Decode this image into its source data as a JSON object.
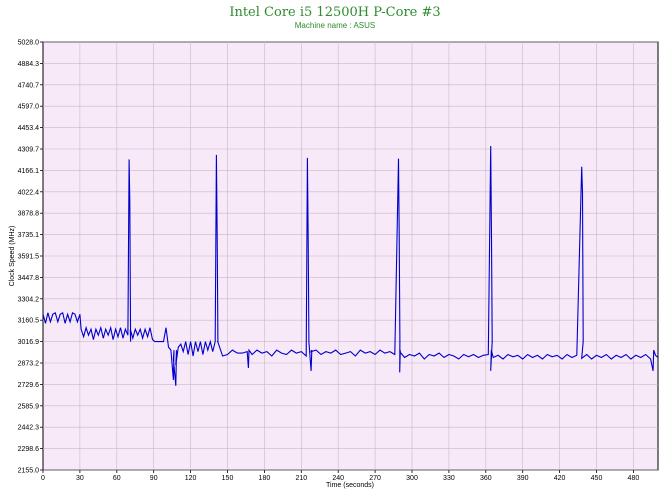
{
  "chart_data": {
    "type": "line",
    "title": "Intel Core i5 12500H P-Core #3",
    "subtitle": "Machine name : ASUS",
    "xlabel": "Time (seconds)",
    "ylabel": "Clock Speed (MHz)",
    "xlim": [
      0,
      500
    ],
    "ylim": [
      2155.0,
      5028.0
    ],
    "x_ticks": [
      0,
      30,
      60,
      90,
      120,
      150,
      180,
      210,
      240,
      270,
      300,
      330,
      360,
      390,
      420,
      450,
      480
    ],
    "y_ticks": [
      "2155.0",
      "2298.6",
      "2442.3",
      "2585.9",
      "2729.6",
      "2873.2",
      "3016.9",
      "3160.5",
      "3304.2",
      "3447.8",
      "3591.5",
      "3735.1",
      "3878.8",
      "4022.4",
      "4166.1",
      "4309.7",
      "4453.4",
      "4597.0",
      "4740.7",
      "4884.3",
      "5028.0"
    ],
    "grid": true,
    "colors": {
      "plot_bg": "#f7e9f7",
      "grid": "#c8b8c8",
      "line": "#0000cc",
      "title": "#2e8b2e"
    },
    "series": [
      {
        "baseline": [
          [
            0,
            3200
          ],
          [
            2,
            3140
          ],
          [
            4,
            3210
          ],
          [
            6,
            3150
          ],
          [
            8,
            3200
          ],
          [
            10,
            3210
          ],
          [
            12,
            3150
          ],
          [
            14,
            3200
          ],
          [
            16,
            3210
          ],
          [
            18,
            3140
          ],
          [
            20,
            3200
          ],
          [
            22,
            3150
          ],
          [
            24,
            3210
          ],
          [
            26,
            3200
          ],
          [
            28,
            3150
          ],
          [
            30,
            3200
          ],
          [
            31,
            3100
          ],
          [
            33,
            3050
          ],
          [
            35,
            3110
          ],
          [
            37,
            3060
          ],
          [
            39,
            3100
          ],
          [
            41,
            3030
          ],
          [
            43,
            3100
          ],
          [
            45,
            3060
          ],
          [
            47,
            3110
          ],
          [
            49,
            3040
          ],
          [
            51,
            3100
          ],
          [
            53,
            3060
          ],
          [
            55,
            3110
          ],
          [
            57,
            3030
          ],
          [
            59,
            3100
          ],
          [
            61,
            3050
          ],
          [
            63,
            3110
          ],
          [
            65,
            3040
          ],
          [
            67,
            3100
          ],
          [
            69,
            3060
          ],
          [
            71,
            3100
          ],
          [
            73,
            3040
          ],
          [
            75,
            3100
          ],
          [
            77,
            3060
          ],
          [
            79,
            3100
          ],
          [
            81,
            3040
          ],
          [
            83,
            3100
          ],
          [
            85,
            3050
          ],
          [
            87,
            3110
          ],
          [
            89,
            3030
          ],
          [
            91,
            3017
          ],
          [
            95,
            3017
          ],
          [
            98,
            3017
          ],
          [
            100,
            3110
          ],
          [
            102,
            2980
          ],
          [
            104,
            2960
          ],
          [
            106,
            2900
          ],
          [
            108,
            2860
          ],
          [
            110,
            2980
          ],
          [
            112,
            3000
          ],
          [
            114,
            2950
          ],
          [
            116,
            3017
          ],
          [
            118,
            2930
          ],
          [
            120,
            3017
          ],
          [
            122,
            2920
          ],
          [
            124,
            3017
          ],
          [
            126,
            2950
          ],
          [
            128,
            3017
          ],
          [
            130,
            2930
          ],
          [
            132,
            3017
          ],
          [
            134,
            2960
          ],
          [
            136,
            3017
          ],
          [
            138,
            2950
          ],
          [
            140,
            3017
          ],
          [
            142,
            3017
          ],
          [
            146,
            2920
          ],
          [
            150,
            2930
          ],
          [
            154,
            2960
          ],
          [
            158,
            2940
          ],
          [
            162,
            2940
          ],
          [
            166,
            2950
          ],
          [
            170,
            2930
          ],
          [
            174,
            2960
          ],
          [
            178,
            2940
          ],
          [
            182,
            2950
          ],
          [
            186,
            2920
          ],
          [
            190,
            2960
          ],
          [
            194,
            2940
          ],
          [
            198,
            2930
          ],
          [
            202,
            2960
          ],
          [
            206,
            2940
          ],
          [
            210,
            2950
          ],
          [
            214,
            2920
          ],
          [
            218,
            2950
          ],
          [
            222,
            2960
          ],
          [
            226,
            2930
          ],
          [
            230,
            2950
          ],
          [
            234,
            2940
          ],
          [
            238,
            2960
          ],
          [
            242,
            2930
          ],
          [
            246,
            2940
          ],
          [
            250,
            2950
          ],
          [
            254,
            2920
          ],
          [
            258,
            2960
          ],
          [
            262,
            2940
          ],
          [
            266,
            2950
          ],
          [
            270,
            2930
          ],
          [
            274,
            2960
          ],
          [
            278,
            2940
          ],
          [
            282,
            2950
          ],
          [
            286,
            2930
          ],
          [
            290,
            2950
          ],
          [
            294,
            2910
          ],
          [
            298,
            2930
          ],
          [
            302,
            2920
          ],
          [
            306,
            2940
          ],
          [
            310,
            2900
          ],
          [
            314,
            2930
          ],
          [
            318,
            2920
          ],
          [
            322,
            2940
          ],
          [
            326,
            2910
          ],
          [
            330,
            2930
          ],
          [
            334,
            2920
          ],
          [
            338,
            2900
          ],
          [
            342,
            2930
          ],
          [
            346,
            2915
          ],
          [
            350,
            2930
          ],
          [
            354,
            2910
          ],
          [
            358,
            2925
          ],
          [
            362,
            2930
          ],
          [
            366,
            2910
          ],
          [
            370,
            2925
          ],
          [
            374,
            2900
          ],
          [
            378,
            2930
          ],
          [
            382,
            2915
          ],
          [
            386,
            2925
          ],
          [
            390,
            2900
          ],
          [
            394,
            2930
          ],
          [
            398,
            2910
          ],
          [
            402,
            2925
          ],
          [
            406,
            2900
          ],
          [
            410,
            2930
          ],
          [
            414,
            2915
          ],
          [
            418,
            2925
          ],
          [
            422,
            2900
          ],
          [
            426,
            2930
          ],
          [
            430,
            2910
          ],
          [
            434,
            2925
          ],
          [
            438,
            2905
          ],
          [
            442,
            2930
          ],
          [
            446,
            2900
          ],
          [
            450,
            2925
          ],
          [
            454,
            2910
          ],
          [
            458,
            2930
          ],
          [
            462,
            2900
          ],
          [
            466,
            2925
          ],
          [
            470,
            2910
          ],
          [
            474,
            2930
          ],
          [
            478,
            2900
          ],
          [
            482,
            2925
          ],
          [
            486,
            2910
          ],
          [
            490,
            2930
          ],
          [
            494,
            2900
          ],
          [
            498,
            2925
          ],
          [
            500,
            2910
          ]
        ],
        "spikes": [
          {
            "x": 70,
            "peak": 4240,
            "secondary": 3960
          },
          {
            "x": 141,
            "peak": 4270,
            "secondary": 3720
          },
          {
            "x": 215,
            "peak": 4250,
            "secondary": 3690
          },
          {
            "x": 289,
            "peak": 4245,
            "secondary": 3730
          },
          {
            "x": 364,
            "peak": 4330,
            "secondary": 3710
          },
          {
            "x": 438,
            "peak": 4190,
            "secondary": 4020
          }
        ],
        "dips": [
          {
            "x": 106,
            "low": 2760
          },
          {
            "x": 108,
            "low": 2720
          },
          {
            "x": 167,
            "low": 2840
          },
          {
            "x": 218,
            "low": 2820
          },
          {
            "x": 290,
            "low": 2810
          },
          {
            "x": 364,
            "low": 2820
          },
          {
            "x": 496,
            "low": 2820
          }
        ]
      }
    ]
  }
}
